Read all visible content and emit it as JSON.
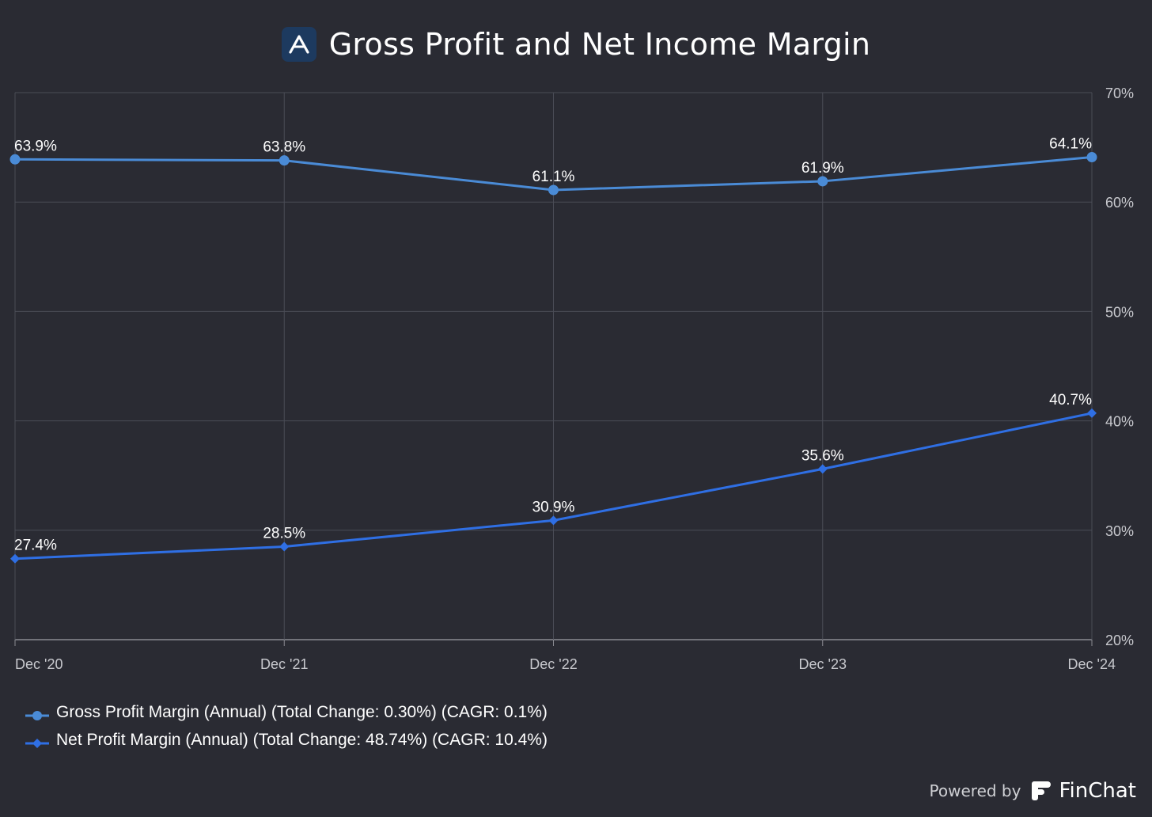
{
  "title": "Gross Profit and Net Income Margin",
  "footer": {
    "powered_by": "Powered by",
    "brand": "FinChat"
  },
  "icons": {
    "title_logo": "a-logo-icon",
    "brand_logo": "finchat-logo-icon"
  },
  "colors": {
    "background": "#2a2b33",
    "gridline": "#4a4c56",
    "gross": "#4a8bd6",
    "net": "#2f6fe4",
    "text": "#ffffff",
    "tick": "#c8c9ce"
  },
  "legend": [
    {
      "label": "Gross Profit Margin (Annual) (Total Change: 0.30%) (CAGR: 0.1%)"
    },
    {
      "label": "Net Profit Margin (Annual) (Total Change: 48.74%) (CAGR: 10.4%)"
    }
  ],
  "chart_data": {
    "type": "line",
    "categories": [
      "Dec '20",
      "Dec '21",
      "Dec '22",
      "Dec '23",
      "Dec '24"
    ],
    "ylim": [
      20,
      70
    ],
    "yticks": [
      20,
      30,
      40,
      50,
      60,
      70
    ],
    "ytick_labels": [
      "20%",
      "30%",
      "40%",
      "50%",
      "60%",
      "70%"
    ],
    "y_axis_position": "right",
    "grid": true,
    "legend_position": "bottom-left",
    "series": [
      {
        "name": "Gross Profit Margin (Annual) (Total Change: 0.30%) (CAGR: 0.1%)",
        "values": [
          63.9,
          63.8,
          61.1,
          61.9,
          64.1
        ],
        "labels": [
          "63.9%",
          "63.8%",
          "61.1%",
          "61.9%",
          "64.1%"
        ],
        "marker": "circle"
      },
      {
        "name": "Net Profit Margin (Annual) (Total Change: 48.74%) (CAGR: 10.4%)",
        "values": [
          27.4,
          28.5,
          30.9,
          35.6,
          40.7
        ],
        "labels": [
          "27.4%",
          "28.5%",
          "30.9%",
          "35.6%",
          "40.7%"
        ],
        "marker": "diamond"
      }
    ]
  }
}
